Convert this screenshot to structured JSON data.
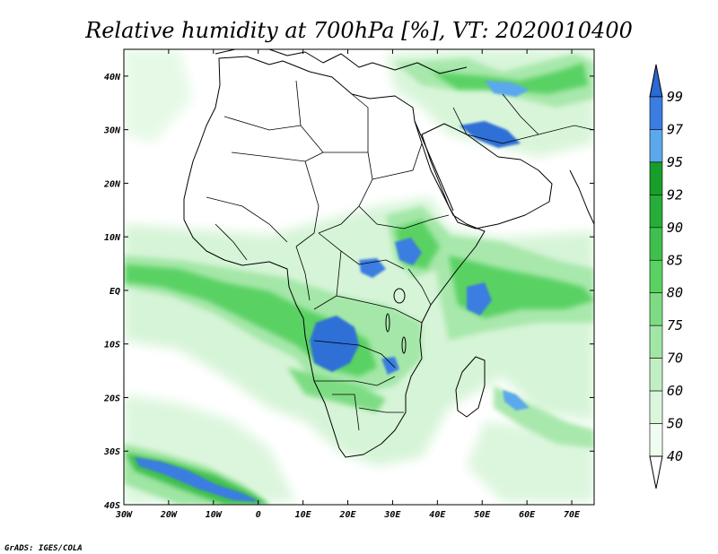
{
  "title": "Relative humidity at 700hPa [%], VT: 2020010400",
  "credit": "GrADS: IGES/COLA",
  "map": {
    "variable": "Relative humidity",
    "level": "700hPa",
    "units": "%",
    "valid_time": "2020010400",
    "lon_range": [
      -30,
      75
    ],
    "lat_range": [
      -40,
      45
    ],
    "x_ticks": [
      "30W",
      "20W",
      "10W",
      "0",
      "10E",
      "20E",
      "30E",
      "40E",
      "50E",
      "60E",
      "70E"
    ],
    "y_ticks": [
      "40N",
      "30N",
      "20N",
      "10N",
      "EQ",
      "10S",
      "20S",
      "30S",
      "40S"
    ]
  },
  "colorbar": {
    "labels": [
      "99",
      "97",
      "95",
      "92",
      "90",
      "85",
      "80",
      "75",
      "70",
      "60",
      "50",
      "40"
    ],
    "colors": [
      "#2a6ad2",
      "#3b7de0",
      "#5ca8ec",
      "#189e2a",
      "#27ad3a",
      "#3fbf4d",
      "#5ad163",
      "#7ddc83",
      "#a1e6a5",
      "#c1efc3",
      "#dcf6dd",
      "#f1fcf1"
    ]
  }
}
